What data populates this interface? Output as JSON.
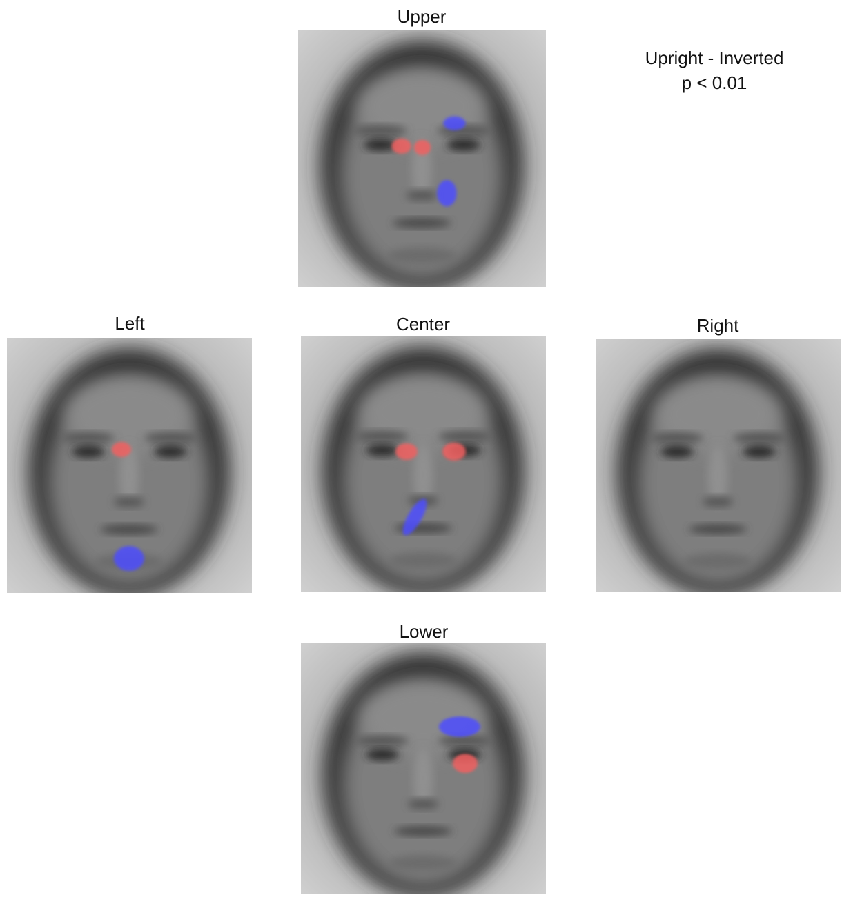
{
  "panels": [
    {
      "title": "Upper"
    },
    {
      "title": "Left"
    },
    {
      "title": "Center"
    },
    {
      "title": "Right"
    },
    {
      "title": "Lower"
    }
  ],
  "annotation": {
    "contrast": "Upright - Inverted",
    "threshold": "p < 0.01"
  }
}
